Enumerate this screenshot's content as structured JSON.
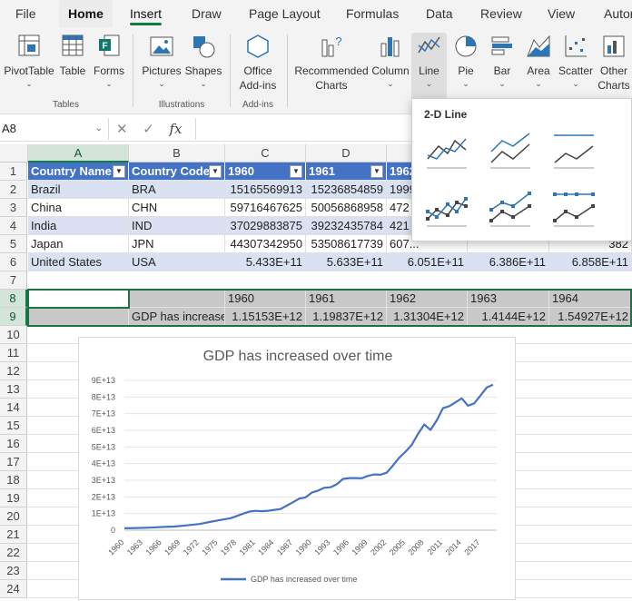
{
  "ribbon_tabs": [
    "File",
    "Home",
    "Insert",
    "Draw",
    "Page Layout",
    "Formulas",
    "Data",
    "Review",
    "View",
    "Autor"
  ],
  "ribbon": {
    "pivot": "PivotTable",
    "table": "Table",
    "forms": "Forms",
    "tables_group": "Tables",
    "pictures": "Pictures",
    "shapes": "Shapes",
    "illustrations_group": "Illustrations",
    "addins_line1": "Office",
    "addins_line2": "Add-ins",
    "addins_group": "Add-ins",
    "rec_line1": "Recommended",
    "rec_line2": "Charts",
    "column": "Column",
    "line": "Line",
    "pie": "Pie",
    "bar": "Bar",
    "area": "Area",
    "scatter": "Scatter",
    "other_line1": "Other",
    "other_line2": "Charts"
  },
  "formula_bar": {
    "name_box": "A8",
    "fx": "fx",
    "value": ""
  },
  "flyout": {
    "title": "2-D Line"
  },
  "columns": [
    "A",
    "B",
    "C",
    "D",
    "E",
    "F",
    "G"
  ],
  "rows": [
    "1",
    "2",
    "3",
    "4",
    "5",
    "6",
    "7",
    "8",
    "9",
    "10",
    "11",
    "12",
    "13",
    "14",
    "15",
    "16",
    "17",
    "18",
    "19",
    "20",
    "21",
    "22",
    "23",
    "24"
  ],
  "table": {
    "headers": [
      "Country Name",
      "Country Code",
      "1960",
      "1961",
      "1962",
      "",
      ""
    ],
    "rows": [
      [
        "Brazil",
        "BRA",
        "15165569913",
        "15236854859",
        "1999",
        "",
        "260"
      ],
      [
        "China",
        "CHN",
        "59716467625",
        "50056868958",
        "472",
        "",
        "489"
      ],
      [
        "India",
        "IND",
        "37029883875",
        "39232435784",
        "421",
        "",
        "941"
      ],
      [
        "Japan",
        "JPN",
        "44307342950",
        "53508617739",
        "607...",
        "",
        "382"
      ],
      [
        "United States",
        "USA",
        "5.433E+11",
        "5.633E+11",
        "6.051E+11",
        "6.386E+11",
        "6.858E+11"
      ]
    ]
  },
  "row8": [
    "",
    "",
    "1960",
    "1961",
    "1962",
    "1963",
    "1964"
  ],
  "row9": [
    "",
    "GDP has increase",
    "1.15153E+12",
    "1.19837E+12",
    "1.31304E+12",
    "1.4144E+12",
    "1.54927E+12"
  ],
  "chart_data": {
    "type": "line",
    "title": "GDP has increased over time",
    "x_ticks": [
      "1960",
      "1963",
      "1966",
      "1969",
      "1972",
      "1975",
      "1978",
      "1981",
      "1984",
      "1987",
      "1990",
      "1993",
      "1996",
      "1999",
      "2002",
      "2005",
      "2008",
      "2011",
      "2014",
      "2017"
    ],
    "y_ticks": [
      "0",
      "1E+13",
      "2E+13",
      "3E+13",
      "4E+13",
      "5E+13",
      "6E+13",
      "7E+13",
      "8E+13",
      "9E+13"
    ],
    "ylim": [
      0,
      90000000000000.0
    ],
    "series": [
      {
        "name": "GDP has increased over time",
        "color": "#4472c4",
        "x": [
          1960,
          1962,
          1964,
          1966,
          1968,
          1970,
          1972,
          1974,
          1975,
          1977,
          1978,
          1979,
          1980,
          1981,
          1982,
          1983,
          1984,
          1985,
          1986,
          1987,
          1988,
          1989,
          1990,
          1991,
          1992,
          1993,
          1994,
          1995,
          1996,
          1997,
          1998,
          1999,
          2000,
          2001,
          2002,
          2003,
          2004,
          2005,
          2006,
          2007,
          2008,
          2009,
          2010,
          2011,
          2012,
          2013,
          2014,
          2015,
          2016,
          2017,
          2018,
          2019
        ],
        "y": [
          1150000000000.0,
          1310000000000.0,
          1550000000000.0,
          1900000000000.0,
          2200000000000.0,
          2900000000000.0,
          3700000000000.0,
          5200000000000.0,
          5900000000000.0,
          7200000000000.0,
          8500000000000.0,
          9900000000000.0,
          11200000000000.0,
          11600000000000.0,
          11400000000000.0,
          11700000000000.0,
          12200000000000.0,
          12700000000000.0,
          14800000000000.0,
          16800000000000.0,
          19000000000000.0,
          19700000000000.0,
          22600000000000.0,
          23800000000000.0,
          25500000000000.0,
          25800000000000.0,
          27600000000000.0,
          30800000000000.0,
          31300000000000.0,
          31300000000000.0,
          31200000000000.0,
          32600000000000.0,
          33500000000000.0,
          33300000000000.0,
          34600000000000.0,
          38900000000000.0,
          43600000000000.0,
          47200000000000.0,
          51200000000000.0,
          57800000000000.0,
          63500000000000.0,
          60200000000000.0,
          66000000000000.0,
          73300000000000.0,
          74500000000000.0,
          76800000000000.0,
          79200000000000.0,
          74800000000000.0,
          76200000000000.0,
          80900000000000.0,
          85700000000000.0,
          87400000000000.0
        ]
      }
    ]
  }
}
